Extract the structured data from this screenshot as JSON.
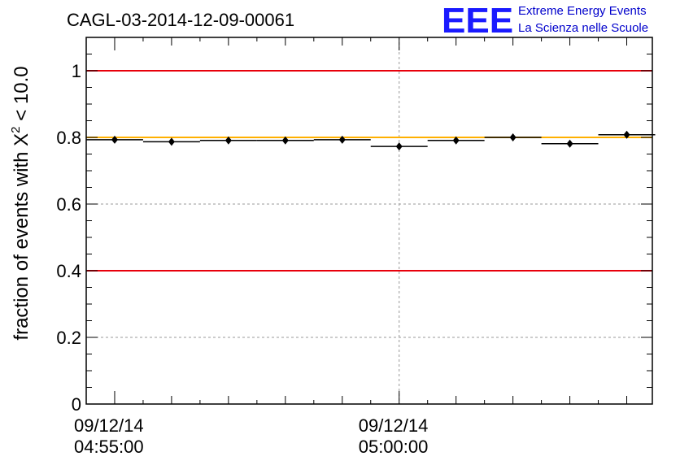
{
  "chart_data": {
    "type": "scatter",
    "title": "CAGL-03-2014-12-09-00061",
    "ylabel_prefix": "fraction of events with ",
    "ylabel_symbol": "X",
    "ylabel_sup": "2",
    "ylabel_suffix": " < 10.0",
    "ylim": [
      0,
      1.1
    ],
    "yticks": [
      "0",
      "0.2",
      "0.4",
      "0.6",
      "0.8",
      "1"
    ],
    "xticks": [
      {
        "date": "09/12/14",
        "time": "04:55:00"
      },
      {
        "date": "09/12/14",
        "time": "05:00:00"
      }
    ],
    "grid": true,
    "reference_lines": [
      {
        "y": 1.0,
        "color": "#e8000b"
      },
      {
        "y": 0.4,
        "color": "#e8000b"
      },
      {
        "y": 0.8,
        "color": "#ffb000"
      }
    ],
    "series": [
      {
        "bin_minutes": 1,
        "points": [
          {
            "x": "04:55:00",
            "y": 0.793
          },
          {
            "x": "04:56:00",
            "y": 0.787
          },
          {
            "x": "04:57:00",
            "y": 0.791
          },
          {
            "x": "04:58:00",
            "y": 0.791
          },
          {
            "x": "04:59:00",
            "y": 0.793
          },
          {
            "x": "05:00:00",
            "y": 0.773
          },
          {
            "x": "05:01:00",
            "y": 0.791
          },
          {
            "x": "05:02:00",
            "y": 0.8
          },
          {
            "x": "05:03:00",
            "y": 0.781
          },
          {
            "x": "05:04:00",
            "y": 0.808
          }
        ]
      }
    ]
  },
  "logo": {
    "mark": "EEE",
    "line1": "Extreme Energy Events",
    "line2": "La Scienza nelle Scuole",
    "color": "#1a1aff"
  }
}
